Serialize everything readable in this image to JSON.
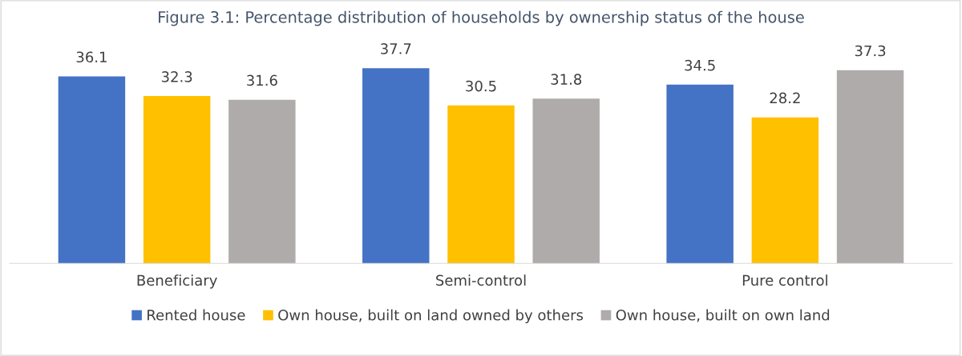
{
  "chart_data": {
    "type": "bar",
    "title": "Figure 3.1: Percentage distribution of households by ownership status of the house",
    "categories": [
      "Beneficiary",
      "Semi-control",
      "Pure control"
    ],
    "series": [
      {
        "name": "Rented house",
        "color": "#4472c4",
        "values": [
          36.1,
          37.7,
          34.5
        ]
      },
      {
        "name": "Own house, built on land owned by others",
        "color": "#ffc000",
        "values": [
          32.3,
          30.5,
          28.2
        ]
      },
      {
        "name": "Own house, built on own land",
        "color": "#afabab",
        "values": [
          31.6,
          31.8,
          37.3
        ]
      }
    ],
    "data_labels": true,
    "legend": "bottom",
    "grid": false
  }
}
